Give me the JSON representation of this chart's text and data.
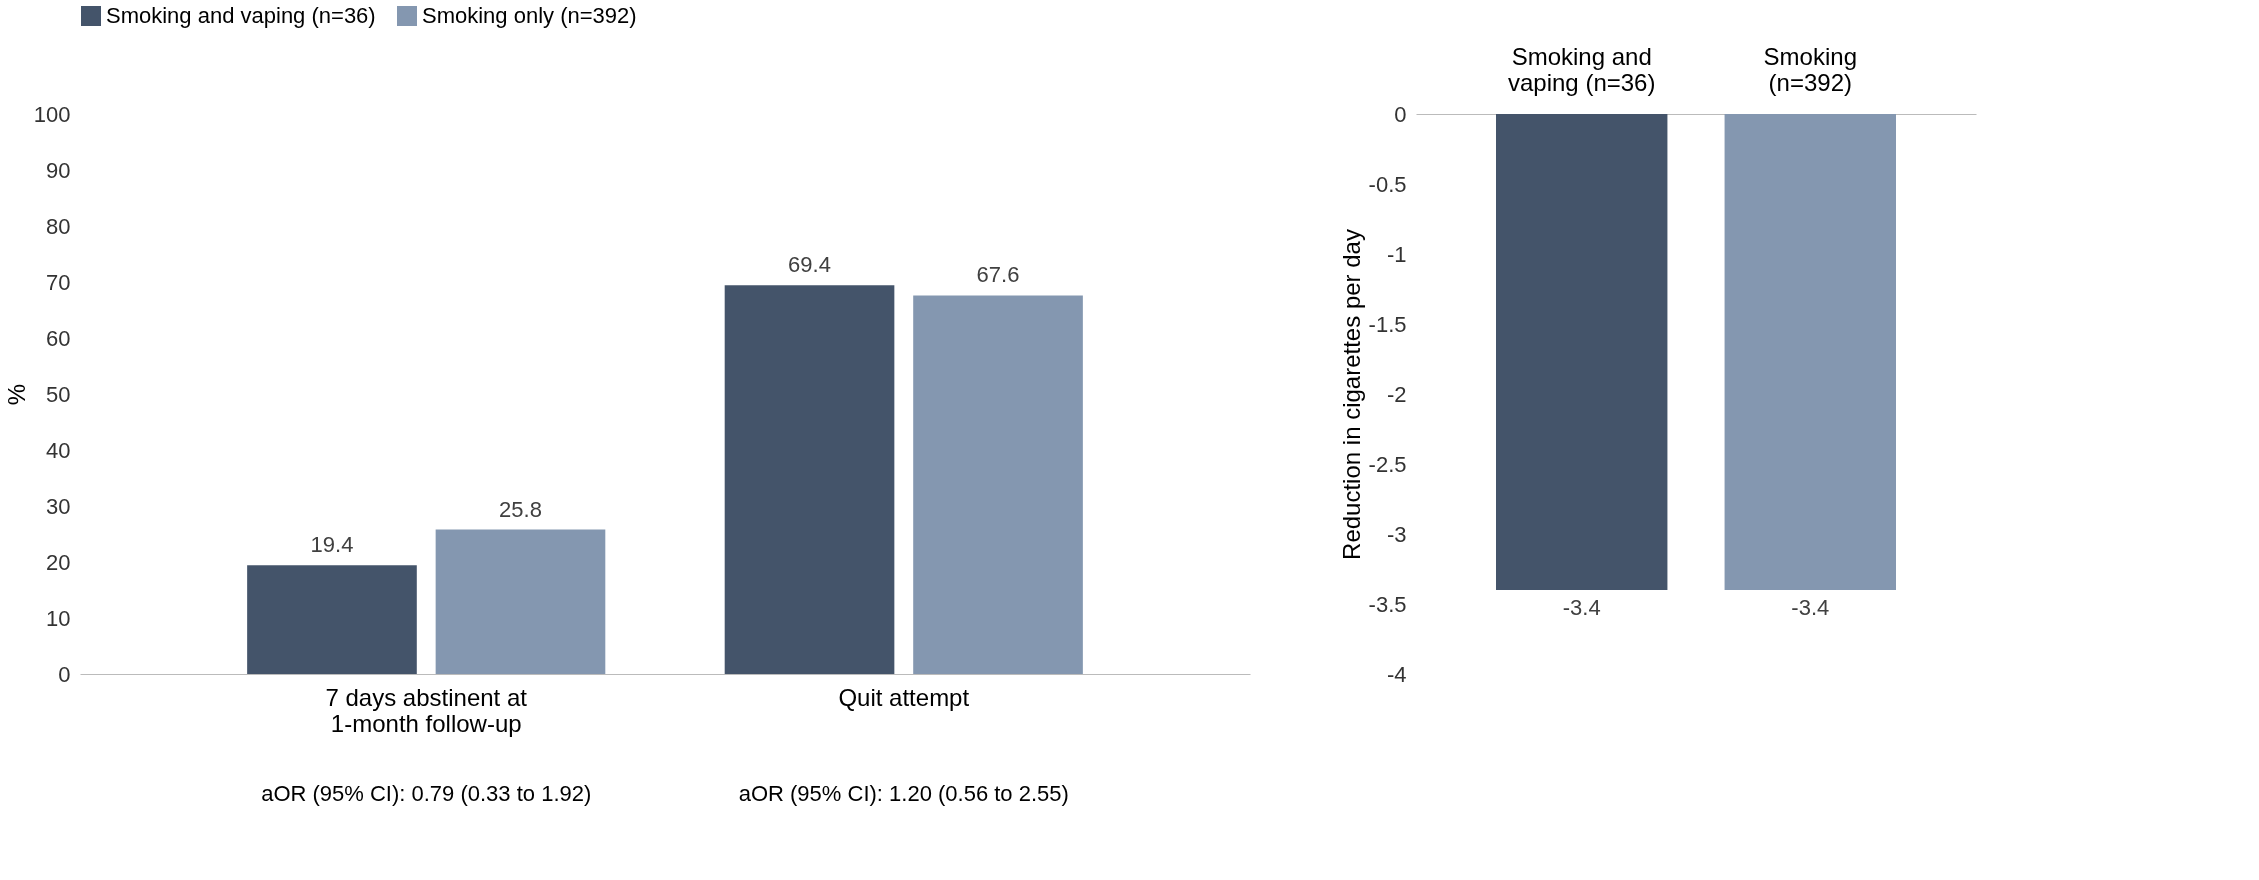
{
  "chart_data": [
    {
      "type": "bar",
      "ylabel": "%",
      "categories": [
        "7 days abstinent at 1-month follow-up",
        "Quit attempt"
      ],
      "series": [
        {
          "name": "Smoking and vaping (n=36)",
          "color": "#44546a",
          "values": [
            19.4,
            69.4
          ]
        },
        {
          "name": "Smoking only (n=392)",
          "color": "#8497b0",
          "values": [
            25.8,
            67.6
          ]
        }
      ],
      "ylim": [
        0,
        100
      ],
      "yticks": [
        0,
        10,
        20,
        30,
        40,
        50,
        60,
        70,
        80,
        90,
        100
      ],
      "legend": "top",
      "data_labels": true,
      "annotations": [
        "aOR (95% CI): 0.79 (0.33 to 1.92)",
        "aOR (95% CI): 1.20 (0.56 to 2.55)"
      ]
    },
    {
      "type": "bar",
      "ylabel": "Reduction in cigarettes per day",
      "categories": [
        "Smoking and vaping (n=36)",
        "Smoking (n=392)"
      ],
      "values": [
        -3.4,
        -3.4
      ],
      "colors": [
        "#44546a",
        "#8497b0"
      ],
      "ylim": [
        -4,
        0
      ],
      "yticks": [
        0,
        -0.5,
        -1,
        -1.5,
        -2,
        -2.5,
        -3,
        -3.5,
        -4
      ],
      "data_labels": true
    }
  ]
}
